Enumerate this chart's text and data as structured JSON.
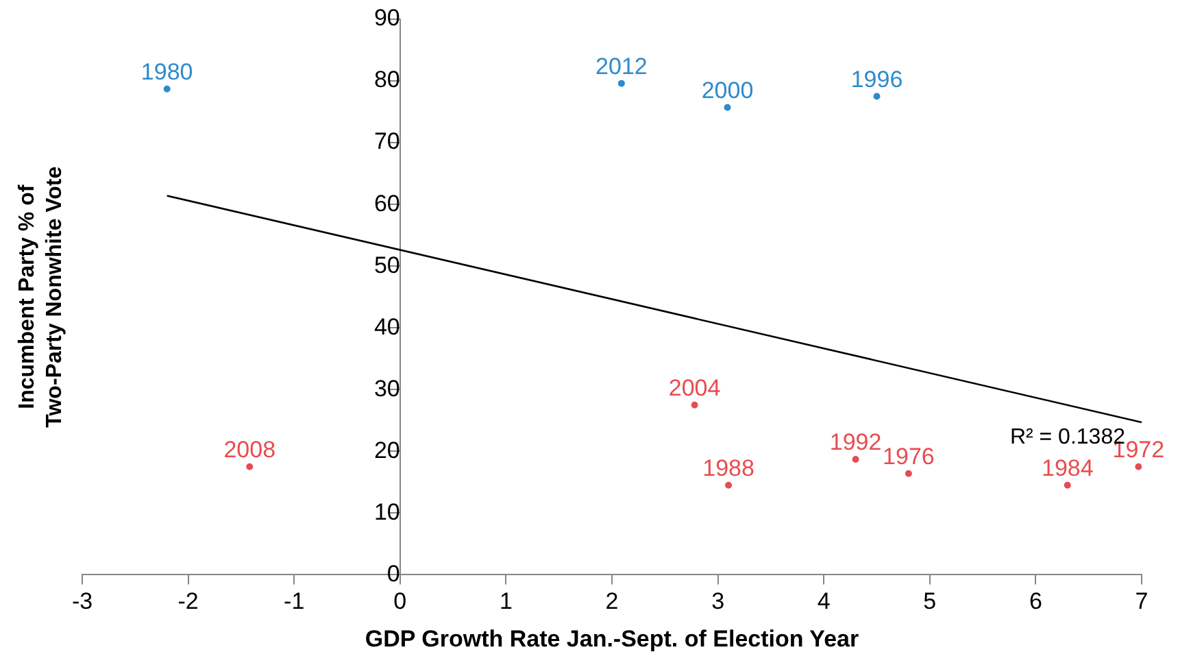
{
  "chart_data": {
    "type": "scatter",
    "xlabel": "GDP Growth Rate Jan.-Sept. of Election Year",
    "ylabel": "Incumbent Party % of Two-Party Nonwhite Vote",
    "xlim": [
      -3,
      7
    ],
    "xticks": [
      -3,
      -2,
      -1,
      0,
      1,
      2,
      3,
      4,
      5,
      6,
      7
    ],
    "ylim": [
      0,
      90
    ],
    "yticks": [
      0,
      10,
      20,
      30,
      40,
      50,
      60,
      70,
      80,
      90
    ],
    "grid": false,
    "legend": false,
    "marker": "circle",
    "series": [
      {
        "name": "1980",
        "color": "#2e8bcc",
        "x": [
          -2.2
        ],
        "values": [
          78.7
        ]
      },
      {
        "name": "2012",
        "color": "#2e8bcc",
        "x": [
          2.09
        ],
        "values": [
          79.6
        ]
      },
      {
        "name": "2000",
        "color": "#2e8bcc",
        "x": [
          3.09
        ],
        "values": [
          75.7
        ]
      },
      {
        "name": "1996",
        "color": "#2e8bcc",
        "x": [
          4.5
        ],
        "values": [
          77.5
        ]
      },
      {
        "name": "2004",
        "color": "#e84c4f",
        "x": [
          2.78
        ],
        "values": [
          27.5
        ]
      },
      {
        "name": "2008",
        "color": "#e84c4f",
        "x": [
          -1.42
        ],
        "values": [
          17.5
        ]
      },
      {
        "name": "1988",
        "color": "#e84c4f",
        "x": [
          3.1
        ],
        "values": [
          14.5
        ]
      },
      {
        "name": "1992",
        "color": "#e84c4f",
        "x": [
          4.3
        ],
        "values": [
          18.7
        ]
      },
      {
        "name": "1976",
        "color": "#e84c4f",
        "x": [
          4.8
        ],
        "values": [
          16.4
        ]
      },
      {
        "name": "1984",
        "color": "#e84c4f",
        "x": [
          6.3
        ],
        "values": [
          14.5
        ]
      },
      {
        "name": "1972",
        "color": "#e84c4f",
        "x": [
          6.97
        ],
        "values": [
          17.5
        ]
      },
      {
        "type": "line",
        "marker": "none",
        "color": "#000000",
        "x": [
          -2.2,
          7
        ],
        "values": [
          61.4,
          24.7
        ]
      }
    ],
    "annotations": [
      "R² = 0.1382"
    ]
  }
}
